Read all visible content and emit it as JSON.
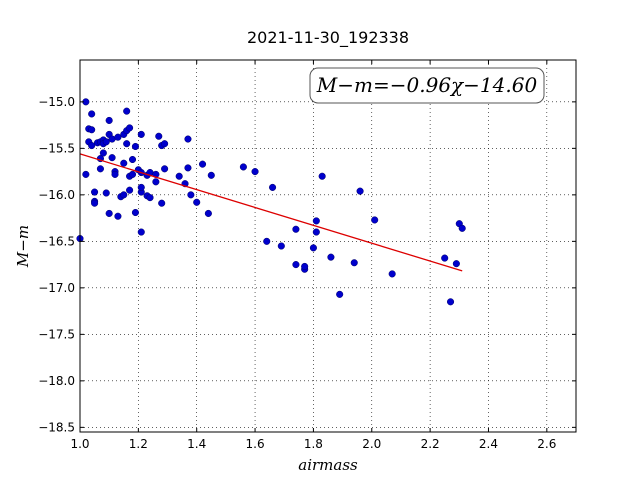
{
  "chart_data": {
    "type": "scatter",
    "title": "2021-11-30_192338",
    "xlabel": "airmass",
    "ylabel": "M−m",
    "xlim": [
      1.0,
      2.7
    ],
    "ylim": [
      -18.55,
      -14.55
    ],
    "xticks": [
      1.0,
      1.2,
      1.4,
      1.6,
      1.8,
      2.0,
      2.2,
      2.4,
      2.6
    ],
    "xtick_labels": [
      "1.0",
      "1.2",
      "1.4",
      "1.6",
      "1.8",
      "2.0",
      "2.2",
      "2.4",
      "2.6"
    ],
    "yticks": [
      -15.0,
      -15.5,
      -16.0,
      -16.5,
      -17.0,
      -17.5,
      -18.0,
      -18.5
    ],
    "ytick_labels": [
      "−15.0",
      "−15.5",
      "−16.0",
      "−16.5",
      "−17.0",
      "−17.5",
      "−18.0",
      "−18.5"
    ],
    "grid": true,
    "equation": "M−m=−0.96χ−14.60",
    "marker_color": "#0000cc",
    "fit_color": "#dd0000",
    "fit": {
      "slope": -0.96,
      "intercept": -14.6,
      "x_range": [
        1.0,
        2.31
      ]
    },
    "points": [
      {
        "x": 1.0,
        "y": -16.47
      },
      {
        "x": 1.02,
        "y": -15.0
      },
      {
        "x": 1.02,
        "y": -15.78
      },
      {
        "x": 1.03,
        "y": -15.29
      },
      {
        "x": 1.03,
        "y": -15.43
      },
      {
        "x": 1.04,
        "y": -15.3
      },
      {
        "x": 1.04,
        "y": -15.47
      },
      {
        "x": 1.04,
        "y": -15.13
      },
      {
        "x": 1.05,
        "y": -15.97
      },
      {
        "x": 1.05,
        "y": -16.07
      },
      {
        "x": 1.05,
        "y": -16.09
      },
      {
        "x": 1.06,
        "y": -15.44
      },
      {
        "x": 1.07,
        "y": -15.43
      },
      {
        "x": 1.07,
        "y": -15.61
      },
      {
        "x": 1.07,
        "y": -15.72
      },
      {
        "x": 1.08,
        "y": -15.41
      },
      {
        "x": 1.08,
        "y": -15.45
      },
      {
        "x": 1.08,
        "y": -15.55
      },
      {
        "x": 1.09,
        "y": -15.98
      },
      {
        "x": 1.09,
        "y": -15.43
      },
      {
        "x": 1.1,
        "y": -15.35
      },
      {
        "x": 1.1,
        "y": -15.2
      },
      {
        "x": 1.1,
        "y": -16.2
      },
      {
        "x": 1.11,
        "y": -15.6
      },
      {
        "x": 1.11,
        "y": -15.4
      },
      {
        "x": 1.12,
        "y": -15.75
      },
      {
        "x": 1.12,
        "y": -15.78
      },
      {
        "x": 1.13,
        "y": -16.23
      },
      {
        "x": 1.13,
        "y": -15.38
      },
      {
        "x": 1.14,
        "y": -16.02
      },
      {
        "x": 1.15,
        "y": -15.66
      },
      {
        "x": 1.15,
        "y": -15.35
      },
      {
        "x": 1.15,
        "y": -16.0
      },
      {
        "x": 1.16,
        "y": -15.1
      },
      {
        "x": 1.16,
        "y": -15.31
      },
      {
        "x": 1.16,
        "y": -15.45
      },
      {
        "x": 1.17,
        "y": -15.95
      },
      {
        "x": 1.17,
        "y": -15.8
      },
      {
        "x": 1.17,
        "y": -15.28
      },
      {
        "x": 1.18,
        "y": -15.62
      },
      {
        "x": 1.18,
        "y": -15.78
      },
      {
        "x": 1.19,
        "y": -15.48
      },
      {
        "x": 1.19,
        "y": -16.19
      },
      {
        "x": 1.2,
        "y": -15.73
      },
      {
        "x": 1.21,
        "y": -15.35
      },
      {
        "x": 1.21,
        "y": -15.76
      },
      {
        "x": 1.21,
        "y": -16.4
      },
      {
        "x": 1.21,
        "y": -15.97
      },
      {
        "x": 1.21,
        "y": -15.92
      },
      {
        "x": 1.23,
        "y": -16.01
      },
      {
        "x": 1.23,
        "y": -15.79
      },
      {
        "x": 1.24,
        "y": -15.76
      },
      {
        "x": 1.24,
        "y": -16.03
      },
      {
        "x": 1.26,
        "y": -15.78
      },
      {
        "x": 1.26,
        "y": -15.86
      },
      {
        "x": 1.27,
        "y": -15.37
      },
      {
        "x": 1.28,
        "y": -15.47
      },
      {
        "x": 1.28,
        "y": -16.09
      },
      {
        "x": 1.29,
        "y": -15.45
      },
      {
        "x": 1.29,
        "y": -15.72
      },
      {
        "x": 1.34,
        "y": -15.8
      },
      {
        "x": 1.36,
        "y": -15.88
      },
      {
        "x": 1.37,
        "y": -15.4
      },
      {
        "x": 1.37,
        "y": -15.71
      },
      {
        "x": 1.38,
        "y": -16.0
      },
      {
        "x": 1.4,
        "y": -16.08
      },
      {
        "x": 1.42,
        "y": -15.67
      },
      {
        "x": 1.44,
        "y": -16.2
      },
      {
        "x": 1.45,
        "y": -15.79
      },
      {
        "x": 1.56,
        "y": -15.7
      },
      {
        "x": 1.6,
        "y": -15.75
      },
      {
        "x": 1.64,
        "y": -16.5
      },
      {
        "x": 1.66,
        "y": -15.92
      },
      {
        "x": 1.69,
        "y": -16.55
      },
      {
        "x": 1.74,
        "y": -16.37
      },
      {
        "x": 1.74,
        "y": -16.75
      },
      {
        "x": 1.77,
        "y": -16.8
      },
      {
        "x": 1.77,
        "y": -16.77
      },
      {
        "x": 1.8,
        "y": -16.57
      },
      {
        "x": 1.81,
        "y": -16.28
      },
      {
        "x": 1.81,
        "y": -16.4
      },
      {
        "x": 1.83,
        "y": -15.8
      },
      {
        "x": 1.86,
        "y": -16.67
      },
      {
        "x": 1.89,
        "y": -17.07
      },
      {
        "x": 1.94,
        "y": -16.73
      },
      {
        "x": 1.96,
        "y": -15.96
      },
      {
        "x": 2.01,
        "y": -16.27
      },
      {
        "x": 2.07,
        "y": -16.85
      },
      {
        "x": 2.25,
        "y": -16.68
      },
      {
        "x": 2.27,
        "y": -17.15
      },
      {
        "x": 2.29,
        "y": -16.74
      },
      {
        "x": 2.3,
        "y": -16.31
      },
      {
        "x": 2.31,
        "y": -16.36
      }
    ]
  }
}
